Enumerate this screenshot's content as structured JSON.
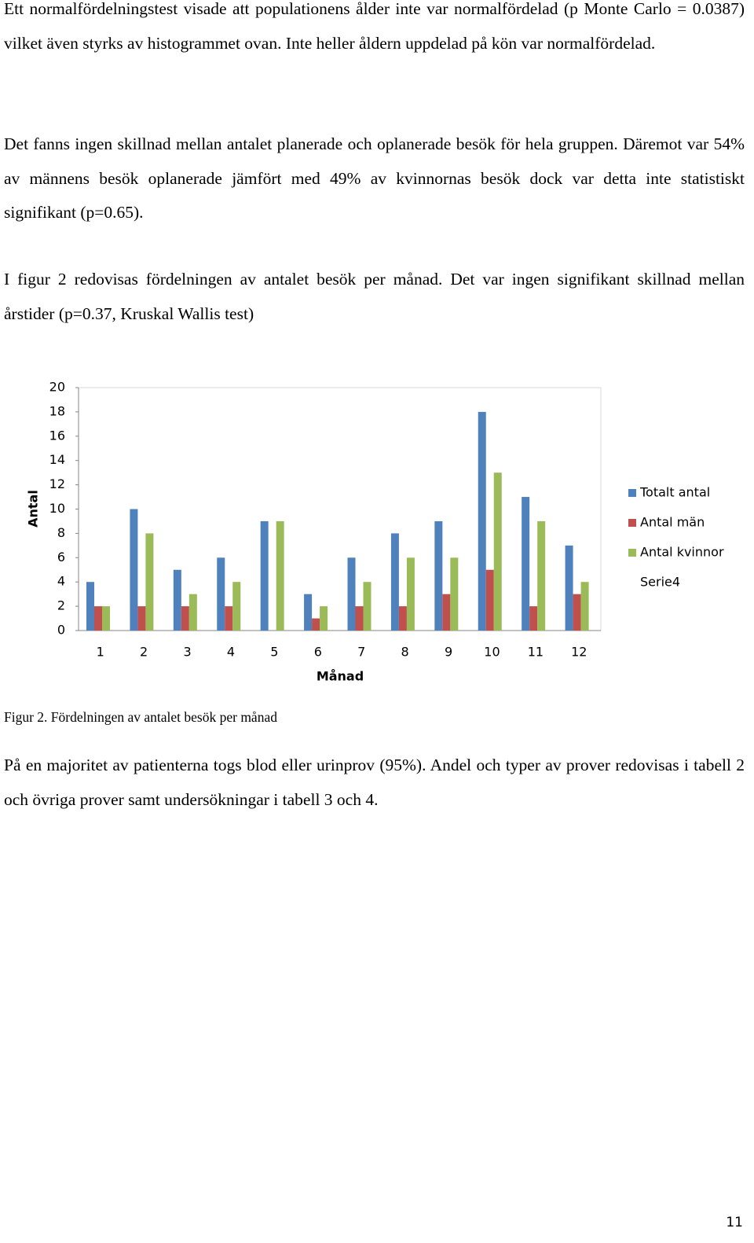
{
  "paragraphs": [
    "Ett normalfördelningstest visade att populationens ålder inte var normalfördelad (p Monte Carlo = 0.0387) vilket även styrks av histogrammet ovan. Inte heller åldern uppdelad på kön var normalfördelad.",
    "Det fanns ingen skillnad mellan antalet planerade och oplanerade besök för hela gruppen. Däremot var 54% av männens besök oplanerade jämfört med 49% av kvinnornas besök dock var detta inte statistiskt signifikant (p=0.65).",
    "I figur 2 redovisas fördelningen av antalet besök per månad. Det var ingen signifikant skillnad mellan årstider (p=0.37, Kruskal Wallis test)"
  ],
  "chart_data": {
    "type": "bar",
    "x_label": "Månad",
    "y_label": "Antal",
    "categories": [
      "1",
      "2",
      "3",
      "4",
      "5",
      "6",
      "7",
      "8",
      "9",
      "10",
      "11",
      "12"
    ],
    "series": [
      {
        "name": "Totalt antal",
        "color": "#4f81bd",
        "values": [
          4,
          10,
          5,
          6,
          9,
          3,
          6,
          8,
          9,
          18,
          11,
          7
        ]
      },
      {
        "name": "Antal män",
        "color": "#c0504d",
        "values": [
          2,
          2,
          2,
          2,
          0,
          1,
          2,
          2,
          3,
          5,
          2,
          3
        ]
      },
      {
        "name": "Antal kvinnor",
        "color": "#9bbb59",
        "values": [
          2,
          8,
          3,
          4,
          9,
          2,
          4,
          6,
          6,
          13,
          9,
          4
        ]
      },
      {
        "name": "Serie4",
        "values": [
          null,
          null,
          null,
          null,
          null,
          null,
          null,
          null,
          null,
          null,
          null,
          null
        ]
      }
    ],
    "ylim": [
      0,
      20
    ],
    "yticks": [
      0,
      2,
      4,
      6,
      8,
      10,
      12,
      14,
      16,
      18,
      20
    ],
    "legend": "right"
  },
  "caption": "Figur 2. Fördelningen av antalet besök per månad",
  "closing": "På en majoritet av patienterna togs blod eller urinprov (95%). Andel och typer av prover redovisas i tabell 2 och övriga prover samt undersökningar i tabell 3 och 4.",
  "page_number": "11"
}
